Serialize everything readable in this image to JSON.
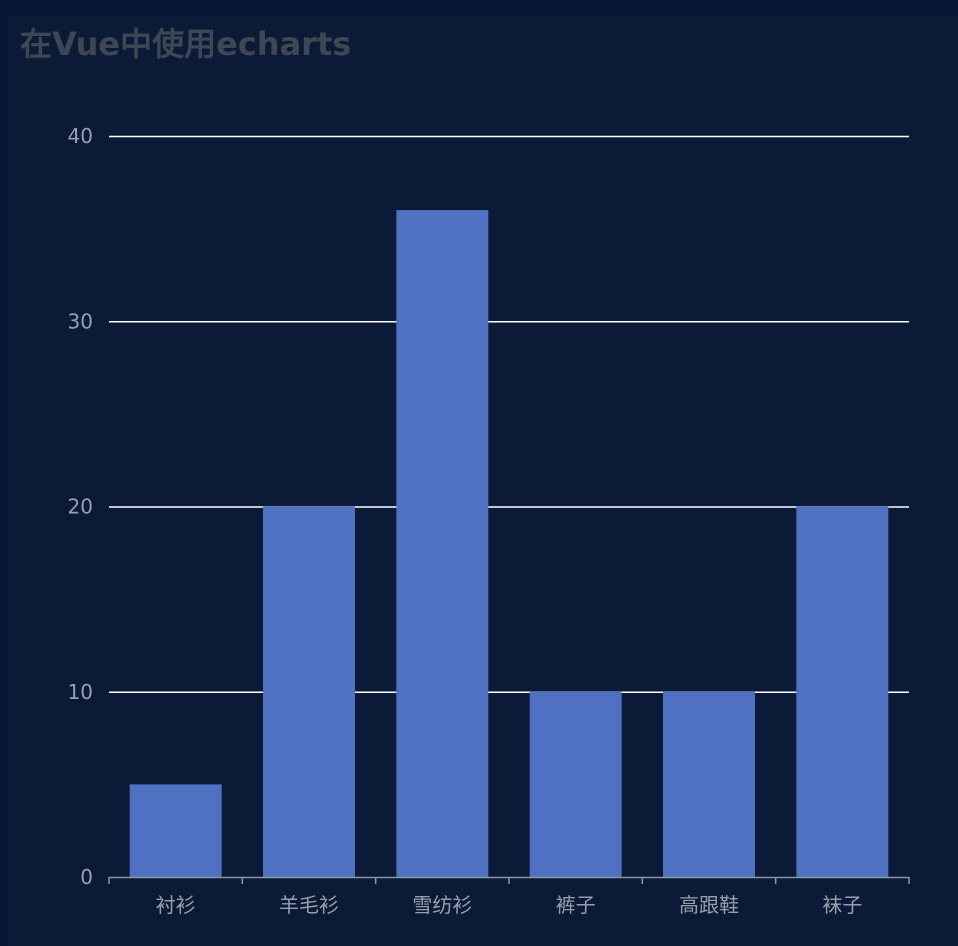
{
  "title": "在Vue中使用echarts",
  "colors": {
    "page_background": "#061533",
    "panel_background": "#0b1a36",
    "bar": "#5071c2",
    "gridline": "#ffffff",
    "axis": "#8c94a8",
    "tick_label": "#99a0ad",
    "title": "#3f4654"
  },
  "chart_data": {
    "type": "bar",
    "title": "在Vue中使用echarts",
    "categories": [
      "衬衫",
      "羊毛衫",
      "雪纺衫",
      "裤子",
      "高跟鞋",
      "袜子"
    ],
    "values": [
      5,
      20,
      36,
      10,
      10,
      20
    ],
    "xlabel": "",
    "ylabel": "",
    "ylim": [
      0,
      40
    ],
    "yticks": [
      0,
      10,
      20,
      30,
      40
    ],
    "grid": true,
    "legend": "none"
  }
}
